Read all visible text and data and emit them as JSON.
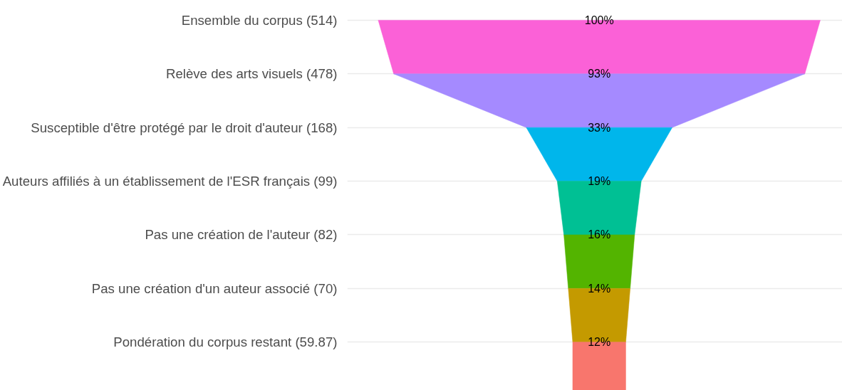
{
  "chart_data": {
    "type": "other",
    "categories": [
      "Ensemble du corpus (514)",
      "Relève des arts visuels (478)",
      "Susceptible d'être protégé par le droit d'auteur (168)",
      "Auteurs affiliés à un établissement de l'ESR français (99)",
      "Pas une création de l'auteur (82)",
      "Pas une création d'un auteur associé (70)",
      "Pondération du corpus restant (59.87)"
    ],
    "values": [
      100,
      93,
      33,
      19,
      16,
      14,
      12
    ],
    "value_labels": [
      "100%",
      "93%",
      "33%",
      "19%",
      "16%",
      "14%",
      "12%"
    ],
    "colors": [
      "#fb61d7",
      "#a58aff",
      "#00b6eb",
      "#00c094",
      "#53b400",
      "#c49a00",
      "#f8766d"
    ]
  }
}
